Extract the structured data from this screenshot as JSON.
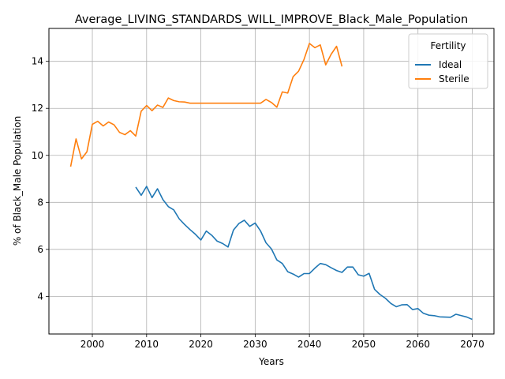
{
  "chart_data": {
    "type": "line",
    "title": "Average_LIVING_STANDARDS_WILL_IMPROVE_Black_Male_Population",
    "xlabel": "Years",
    "ylabel": "% of Black_Male Population",
    "xlim": [
      1992,
      2074
    ],
    "ylim": [
      2.4,
      15.4
    ],
    "xticks": [
      2000,
      2010,
      2020,
      2030,
      2040,
      2050,
      2060,
      2070
    ],
    "yticks": [
      4,
      6,
      8,
      10,
      12,
      14
    ],
    "grid": true,
    "legend": {
      "title": "Fertility",
      "placement": "top-right"
    },
    "series": [
      {
        "name": "Ideal",
        "color": "#1f77b4",
        "x": [
          2008,
          2009,
          2010,
          2011,
          2012,
          2013,
          2014,
          2015,
          2016,
          2017,
          2018,
          2019,
          2020,
          2021,
          2022,
          2023,
          2024,
          2025,
          2026,
          2027,
          2028,
          2029,
          2030,
          2031,
          2032,
          2033,
          2034,
          2035,
          2036,
          2037,
          2038,
          2039,
          2040,
          2041,
          2042,
          2043,
          2044,
          2045,
          2046,
          2047,
          2048,
          2049,
          2050,
          2051,
          2052,
          2053,
          2054,
          2055,
          2056,
          2057,
          2058,
          2059,
          2060,
          2061,
          2062,
          2063,
          2064,
          2065,
          2066,
          2067,
          2068,
          2069,
          2070
        ],
        "y": [
          8.65,
          8.3,
          8.68,
          8.2,
          8.58,
          8.12,
          7.82,
          7.68,
          7.3,
          7.06,
          6.84,
          6.64,
          6.4,
          6.78,
          6.6,
          6.35,
          6.25,
          6.1,
          6.82,
          7.1,
          7.24,
          6.98,
          7.12,
          6.78,
          6.28,
          6.02,
          5.55,
          5.4,
          5.05,
          4.95,
          4.82,
          4.97,
          4.97,
          5.2,
          5.4,
          5.35,
          5.22,
          5.1,
          5.02,
          5.25,
          5.25,
          4.92,
          4.86,
          4.98,
          4.3,
          4.08,
          3.92,
          3.7,
          3.56,
          3.64,
          3.65,
          3.44,
          3.48,
          3.28,
          3.2,
          3.18,
          3.13,
          3.12,
          3.11,
          3.24,
          3.18,
          3.12,
          3.02
        ]
      },
      {
        "name": "Sterile",
        "color": "#ff7f0e",
        "x": [
          1996,
          1997,
          1998,
          1999,
          2000,
          2001,
          2002,
          2003,
          2004,
          2005,
          2006,
          2007,
          2008,
          2009,
          2010,
          2011,
          2012,
          2013,
          2014,
          2015,
          2016,
          2017,
          2018,
          2019,
          2020,
          2021,
          2022,
          2023,
          2024,
          2025,
          2026,
          2027,
          2028,
          2029,
          2030,
          2031,
          2032,
          2033,
          2034,
          2035,
          2036,
          2037,
          2038,
          2039,
          2040,
          2041,
          2042,
          2043,
          2044,
          2045,
          2046
        ],
        "y": [
          9.52,
          10.7,
          9.85,
          10.15,
          11.32,
          11.45,
          11.25,
          11.42,
          11.3,
          10.98,
          10.88,
          11.05,
          10.82,
          11.88,
          12.12,
          11.9,
          12.14,
          12.04,
          12.44,
          12.33,
          12.28,
          12.27,
          12.22,
          12.22,
          12.22,
          12.22,
          12.22,
          12.22,
          12.22,
          12.22,
          12.22,
          12.22,
          12.22,
          12.22,
          12.22,
          12.22,
          12.38,
          12.25,
          12.05,
          12.7,
          12.65,
          13.35,
          13.58,
          14.08,
          14.76,
          14.58,
          14.7,
          13.85,
          14.3,
          14.64,
          13.78
        ]
      }
    ]
  }
}
